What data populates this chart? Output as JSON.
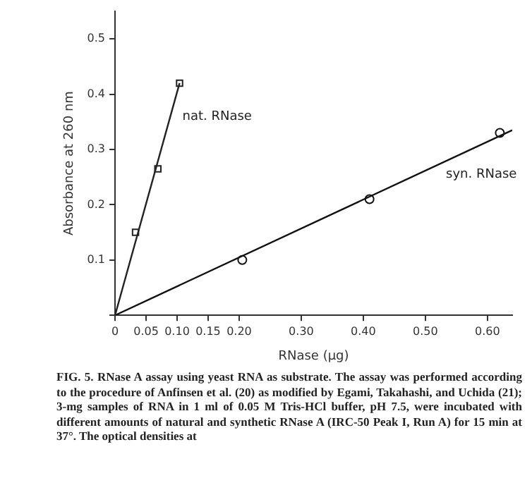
{
  "chart_data": {
    "type": "scatter",
    "xlabel": "RNase (μg)",
    "ylabel": "Absorbance at 260 nm",
    "xlim": [
      0,
      0.64
    ],
    "xticks": [
      {
        "value": 0,
        "label": "0"
      },
      {
        "value": 0.05,
        "label": "0.05"
      },
      {
        "value": 0.1,
        "label": "0.10"
      },
      {
        "value": 0.15,
        "label": "0.15"
      },
      {
        "value": 0.2,
        "label": "0.20"
      },
      {
        "value": 0.3,
        "label": "0.30"
      },
      {
        "value": 0.4,
        "label": "0.40"
      },
      {
        "value": 0.5,
        "label": "0.50"
      },
      {
        "value": 0.6,
        "label": "0.60"
      }
    ],
    "ylim": [
      0,
      0.55
    ],
    "yticks": [
      {
        "value": 0,
        "label": null
      },
      0.1,
      0.2,
      0.3,
      0.4,
      0.5
    ],
    "grid": false,
    "legend": false,
    "series": [
      {
        "name": "nat. RNase",
        "type": "scatter",
        "marker": "square",
        "color": "#222222",
        "x": [
          0.033,
          0.069,
          0.104
        ],
        "values": [
          0.15,
          0.265,
          0.42
        ]
      },
      {
        "name": "syn. RNase",
        "type": "scatter",
        "marker": "circle",
        "color": "#111111",
        "x": [
          0.205,
          0.41,
          0.62
        ],
        "values": [
          0.1,
          0.21,
          0.33
        ]
      },
      {
        "type": "line",
        "marker": "none",
        "line_style": "solid",
        "color": "#222222",
        "x": [
          0,
          0.104
        ],
        "values": [
          0,
          0.42
        ]
      },
      {
        "type": "line",
        "marker": "none",
        "line_style": "solid",
        "color": "#111111",
        "x": [
          0,
          0.64
        ],
        "values": [
          0,
          0.335
        ]
      }
    ],
    "annotations": [
      "FIG. 5. RNase A assay using yeast RNA as substrate. The assay was performed according to the procedure of Anfinsen et al. (20) as modified by Egami, Takahashi, and Uchida (21); 3-mg samples of RNA in 1 ml of 0.05 M Tris-HCl buffer, pH 7.5, were incubated with different amounts of natural and synthetic RNase A (IRC-50 Peak I, Run A) for 15 min at 37°. The optical densities at"
    ]
  }
}
